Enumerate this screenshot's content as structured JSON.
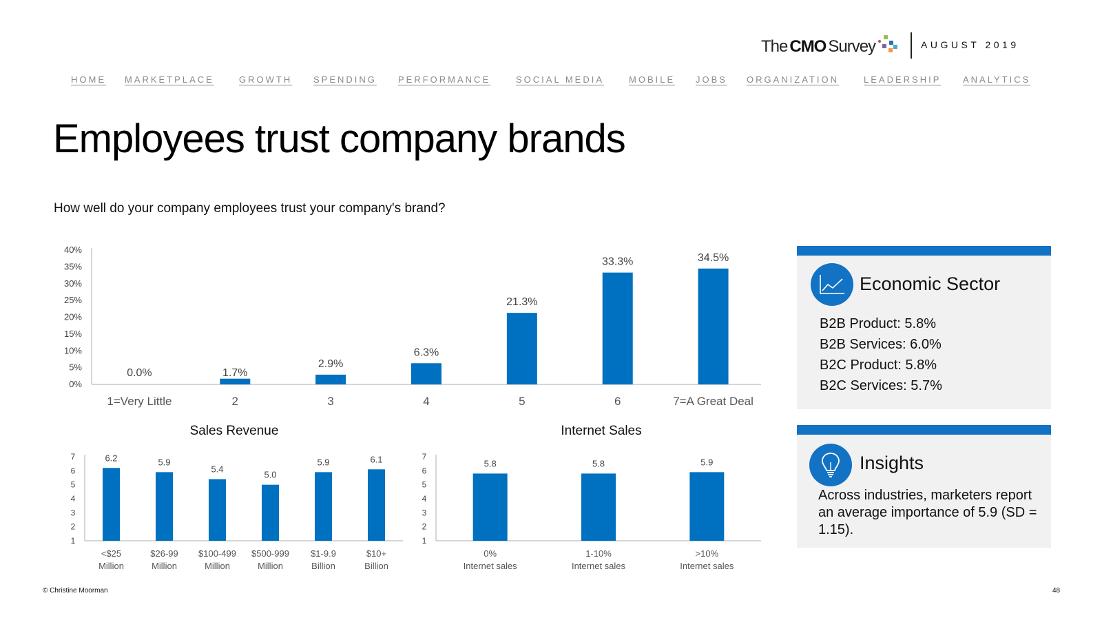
{
  "brand": {
    "logo_the": "The",
    "logo_cmo": "CMO",
    "logo_survey": "Survey",
    "date": "AUGUST 2019",
    "dot_colors": [
      "#c0504d",
      "#9bbb59",
      "#1f77b4",
      "#8064a2",
      "#4bacc6",
      "#f79646"
    ]
  },
  "nav": {
    "items": [
      "HOME",
      "MARKETPLACE",
      "GROWTH",
      "SPENDING",
      "PERFORMANCE",
      "SOCIAL MEDIA",
      "MOBILE",
      "JOBS",
      "ORGANIZATION",
      "LEADERSHIP",
      "ANALYTICS"
    ]
  },
  "page": {
    "title": "Employees trust company brands",
    "question": "How well do your company employees trust your company's brand?"
  },
  "colors": {
    "bar": "#0070c0",
    "accent": "#1272c4",
    "panel_bg": "#f1f1f1"
  },
  "chart_data": [
    {
      "type": "bar",
      "title": "",
      "categories": [
        "1=Very Little",
        "2",
        "3",
        "4",
        "5",
        "6",
        "7=A Great Deal"
      ],
      "values": [
        0.0,
        1.7,
        2.9,
        6.3,
        21.3,
        33.3,
        34.5
      ],
      "labels": [
        "0.0%",
        "1.7%",
        "2.9%",
        "6.3%",
        "21.3%",
        "33.3%",
        "34.5%"
      ],
      "yticks": [
        "0%",
        "5%",
        "10%",
        "15%",
        "20%",
        "25%",
        "30%",
        "35%",
        "40%"
      ],
      "ylim": [
        0,
        40
      ],
      "xlabel": "",
      "ylabel": ""
    },
    {
      "type": "bar",
      "title": "Sales Revenue",
      "categories": [
        [
          "<$25",
          "Million"
        ],
        [
          "$26-99",
          "Million"
        ],
        [
          "$100-499",
          "Million"
        ],
        [
          "$500-999",
          "Million"
        ],
        [
          "$1-9.9",
          "Billion"
        ],
        [
          "$10+",
          "Billion"
        ]
      ],
      "values": [
        6.2,
        5.9,
        5.4,
        5.0,
        5.9,
        6.1
      ],
      "labels": [
        "6.2",
        "5.9",
        "5.4",
        "5.0",
        "5.9",
        "6.1"
      ],
      "yticks": [
        "1",
        "2",
        "3",
        "4",
        "5",
        "6",
        "7"
      ],
      "ylim": [
        1,
        7
      ]
    },
    {
      "type": "bar",
      "title": "Internet Sales",
      "categories": [
        [
          "0%",
          "Internet sales"
        ],
        [
          "1-10%",
          "Internet sales"
        ],
        [
          ">10%",
          "Internet sales"
        ]
      ],
      "values": [
        5.8,
        5.8,
        5.9
      ],
      "labels": [
        "5.8",
        "5.8",
        "5.9"
      ],
      "yticks": [
        "1",
        "2",
        "3",
        "4",
        "5",
        "6",
        "7"
      ],
      "ylim": [
        1,
        7
      ]
    }
  ],
  "panels": {
    "economic": {
      "title": "Economic Sector",
      "icon": "line-chart-icon",
      "items": [
        "B2B Product: 5.8%",
        "B2B Services: 6.0%",
        "B2C Product: 5.8%",
        "B2C Services: 5.7%"
      ]
    },
    "insights": {
      "title": "Insights",
      "icon": "lightbulb-icon",
      "text": "Across industries, marketers report an average importance of 5.9 (SD = 1.15)."
    }
  },
  "footer": {
    "copyright": "© Christine Moorman",
    "page_number": "48"
  }
}
